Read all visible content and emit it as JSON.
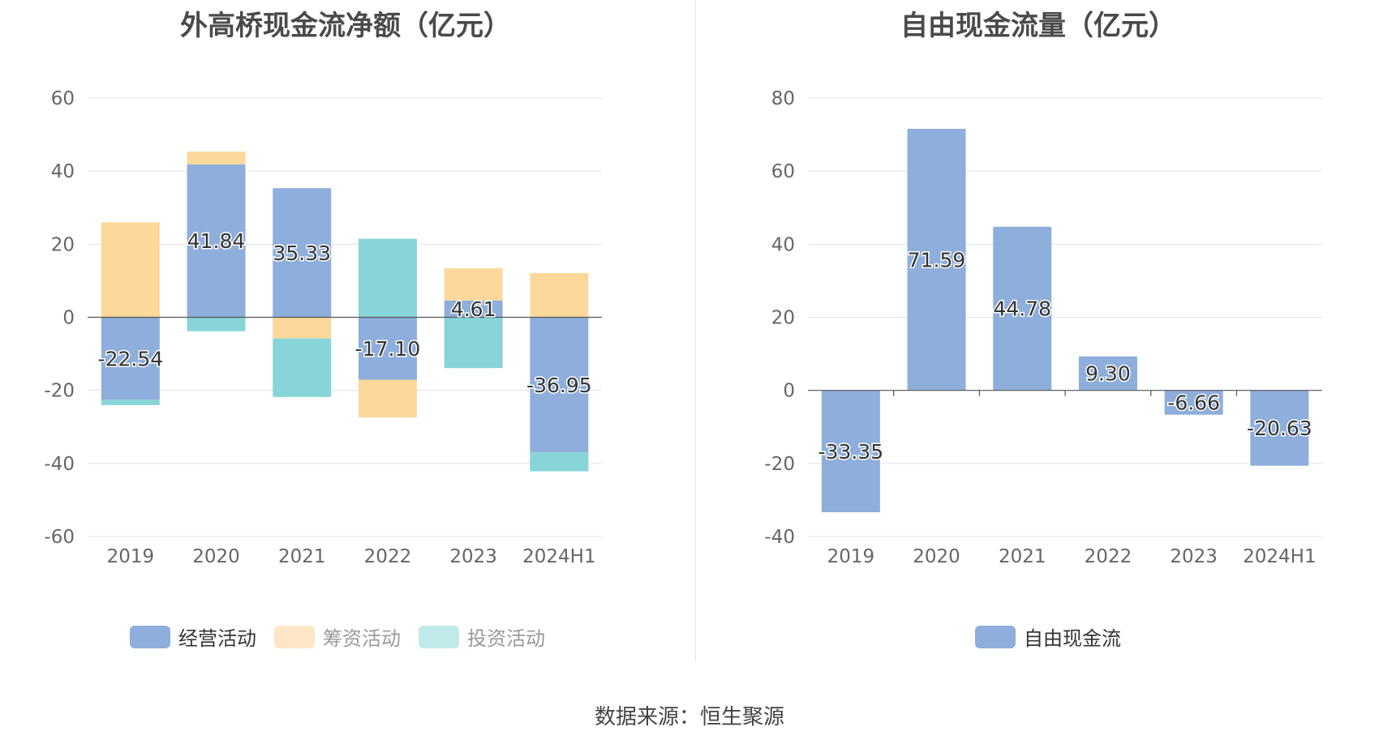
{
  "source_text": "数据来源：恒生聚源",
  "chart_data": [
    {
      "type": "bar",
      "stacked": true,
      "title": "外高桥现金流净额（亿元）",
      "categories": [
        "2019",
        "2020",
        "2021",
        "2022",
        "2023",
        "2024H1"
      ],
      "ylim": [
        -60,
        60
      ],
      "yticks": [
        60,
        40,
        20,
        0,
        -20,
        -40,
        -60
      ],
      "grid": true,
      "legend_position": "bottom",
      "series": [
        {
          "name": "经营活动",
          "color": "#8eaedb",
          "values": [
            -22.54,
            41.84,
            35.33,
            -17.1,
            4.61,
            -36.95
          ]
        },
        {
          "name": "筹资活动",
          "color": "#fdd89b",
          "values": [
            26.0,
            3.5,
            -5.8,
            -10.3,
            8.8,
            12.1
          ]
        },
        {
          "name": "投资活动",
          "color": "#87d5d8",
          "values": [
            -1.5,
            -3.8,
            -16.0,
            21.5,
            -13.9,
            -5.2
          ]
        }
      ],
      "data_labels": [
        "-22.54",
        "41.84",
        "35.33",
        "-17.10",
        "4.61",
        "-36.95"
      ],
      "legend_text_colors": [
        "#333333",
        "#999999",
        "#999999"
      ],
      "legend_swatch_colors": [
        "#8eaedb",
        "#fde6c6",
        "#c0e9ea"
      ]
    },
    {
      "type": "bar",
      "title": "自由现金流量（亿元）",
      "categories": [
        "2019",
        "2020",
        "2021",
        "2022",
        "2023",
        "2024H1"
      ],
      "ylim": [
        -40,
        80
      ],
      "yticks": [
        80,
        60,
        40,
        20,
        0,
        -20,
        -40
      ],
      "grid": true,
      "legend_position": "bottom",
      "series": [
        {
          "name": "自由现金流",
          "color": "#8eaedb",
          "values": [
            -33.35,
            71.59,
            44.78,
            9.3,
            -6.66,
            -20.63
          ]
        }
      ],
      "data_labels": [
        "-33.35",
        "71.59",
        "44.78",
        "9.30",
        "-6.66",
        "-20.63"
      ]
    }
  ]
}
